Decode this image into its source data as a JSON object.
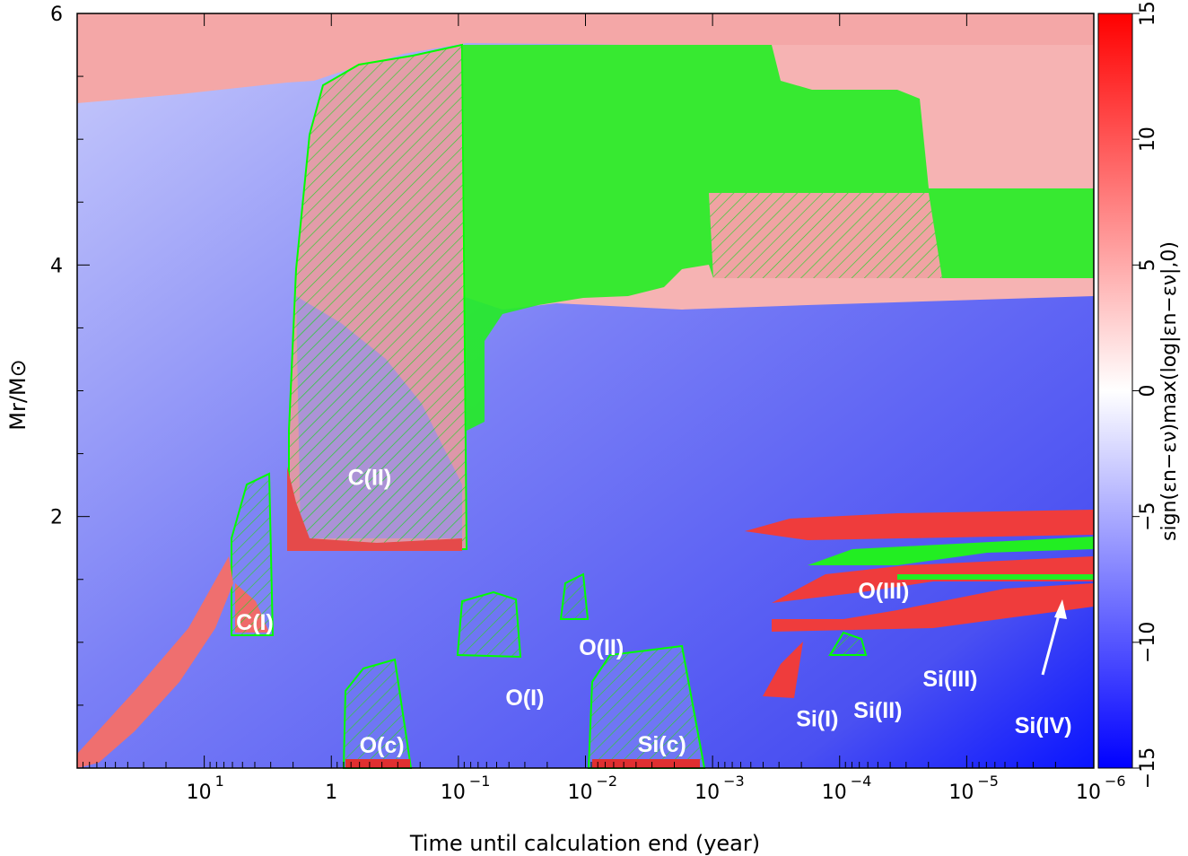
{
  "chart_data": {
    "type": "heatmap",
    "title": "",
    "xlabel": "Time until calculation end (year)",
    "ylabel": "Mr/M⊙",
    "x_scale": "log",
    "x_reversed": true,
    "xlim": [
      100,
      1e-06
    ],
    "ylim": [
      0,
      6
    ],
    "x_ticks": [
      {
        "value": 10,
        "label": "10",
        "exp": "1"
      },
      {
        "value": 1,
        "label": "1",
        "exp": ""
      },
      {
        "value": 0.1,
        "label": "10",
        "exp": "−1"
      },
      {
        "value": 0.01,
        "label": "10",
        "exp": "−2"
      },
      {
        "value": 0.001,
        "label": "10",
        "exp": "−3"
      },
      {
        "value": 0.0001,
        "label": "10",
        "exp": "−4"
      },
      {
        "value": 1e-05,
        "label": "10",
        "exp": "−5"
      },
      {
        "value": 1e-06,
        "label": "10",
        "exp": "−6"
      }
    ],
    "y_ticks": [
      {
        "value": 2,
        "label": "2"
      },
      {
        "value": 4,
        "label": "4"
      },
      {
        "value": 6,
        "label": "6"
      }
    ],
    "colorbar": {
      "label": "sign(εn−εν)max(log|εn−εν|,0)",
      "range": [
        -15,
        15
      ],
      "ticks": [
        "15",
        "10",
        "5",
        "0",
        "−5",
        "−10",
        "−15"
      ],
      "tick_values": [
        15,
        10,
        5,
        0,
        -5,
        -10,
        -15
      ],
      "colors": {
        "positive": "#ff0000",
        "zero": "#ffffff",
        "negative": "#0000ff"
      }
    },
    "convective_color": "#00ff00",
    "region_labels": [
      {
        "text": "C(I)",
        "t": 4.0,
        "m": 1.1
      },
      {
        "text": "C(II)",
        "t": 0.5,
        "m": 2.25
      },
      {
        "text": "O(c)",
        "t": 0.4,
        "m": 0.12
      },
      {
        "text": "O(I)",
        "t": 0.03,
        "m": 0.5
      },
      {
        "text": "O(II)",
        "t": 0.0075,
        "m": 0.9
      },
      {
        "text": "Si(c)",
        "t": 0.0025,
        "m": 0.13
      },
      {
        "text": "Si(I)",
        "t": 0.00015,
        "m": 0.33
      },
      {
        "text": "Si(II)",
        "t": 5e-05,
        "m": 0.4
      },
      {
        "text": "O(III)",
        "t": 4.5e-05,
        "m": 1.35
      },
      {
        "text": "Si(III)",
        "t": 1.35e-05,
        "m": 0.65
      },
      {
        "text": "Si(IV)",
        "t": 2.5e-06,
        "m": 0.28
      }
    ]
  }
}
